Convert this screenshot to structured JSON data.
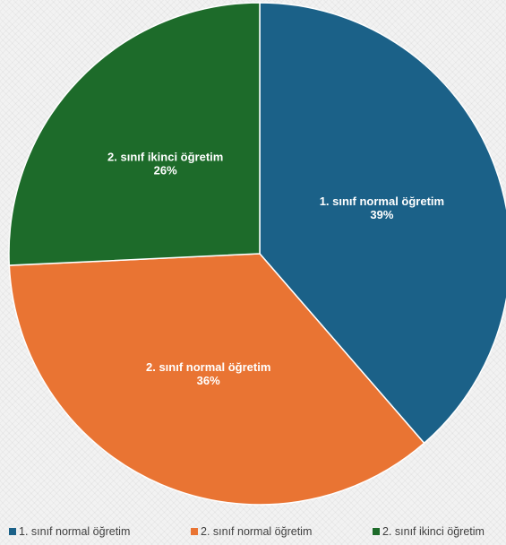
{
  "chart_data": {
    "type": "pie",
    "title": "",
    "slices": [
      {
        "label": "1. sınıf normal öğretim",
        "value": 39,
        "display": "39%",
        "color": "#1b6188"
      },
      {
        "label": "2. sınıf normal öğretim",
        "value": 36,
        "display": "36%",
        "color": "#e97433"
      },
      {
        "label": "2. sınıf ikinci öğretim",
        "value": 26,
        "display": "26%",
        "color": "#1d6b2a"
      }
    ],
    "start_angle_deg": 0,
    "direction": "clockwise",
    "legend_position": "bottom"
  }
}
